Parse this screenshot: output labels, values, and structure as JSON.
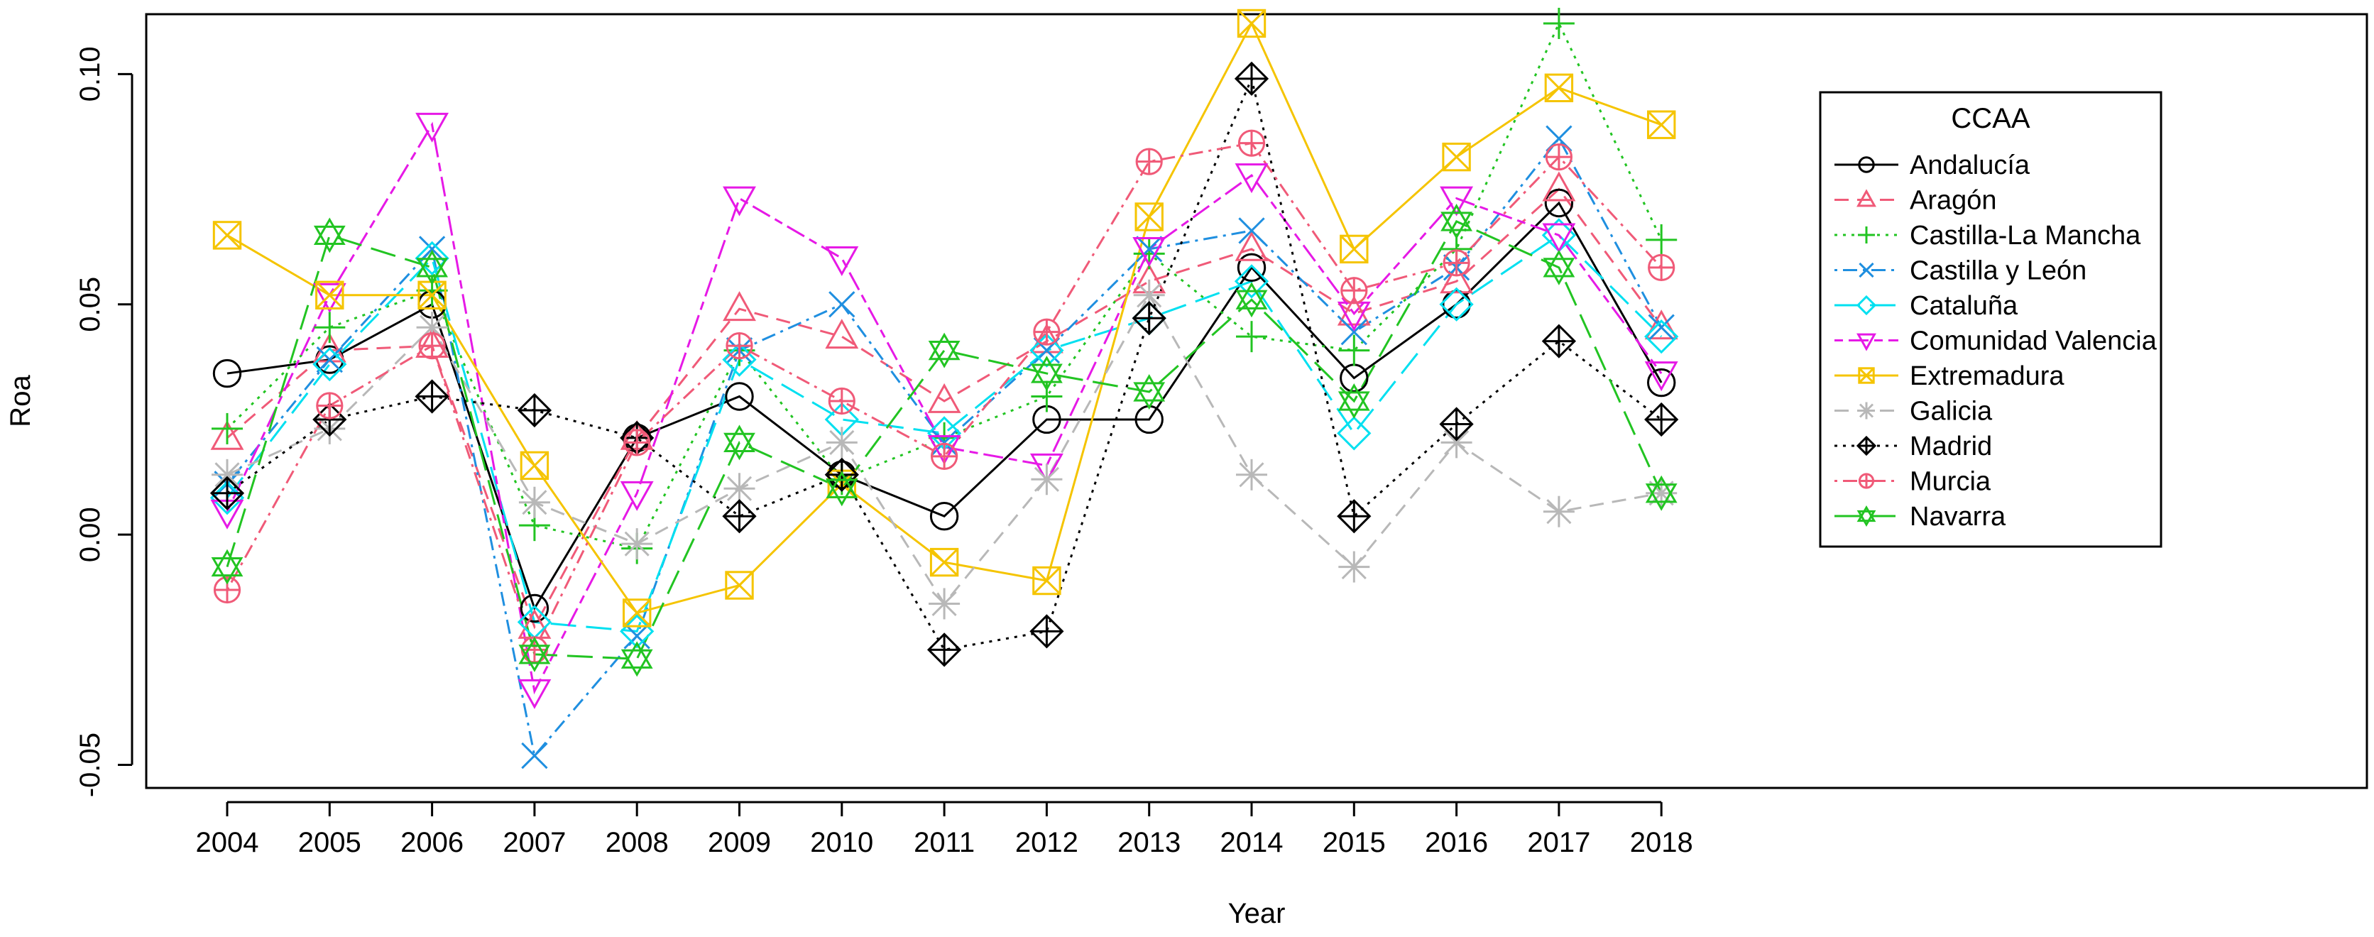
{
  "chart_data": {
    "type": "line",
    "title": "",
    "xlabel": "Year",
    "ylabel": "Roa",
    "x": [
      2004,
      2005,
      2006,
      2007,
      2008,
      2009,
      2010,
      2011,
      2012,
      2013,
      2014,
      2015,
      2016,
      2017,
      2018
    ],
    "x_tick_labels": [
      "2004",
      "2005",
      "2006",
      "2007",
      "2008",
      "2009",
      "2010",
      "2011",
      "2012",
      "2013",
      "2014",
      "2015",
      "2016",
      "2017",
      "2018"
    ],
    "y_ticks": [
      -0.05,
      0.0,
      0.05,
      0.1
    ],
    "y_tick_labels": [
      "-0.05",
      "0.00",
      "0.05",
      "0.10"
    ],
    "ylim": [
      -0.055,
      0.113
    ],
    "grid": false,
    "legend_title": "CCAA",
    "legend_position": "right",
    "series": [
      {
        "name": "Andalucía",
        "color": "#000000",
        "marker": "circle",
        "dash": "solid",
        "values": [
          0.035,
          0.038,
          0.05,
          -0.016,
          0.021,
          0.03,
          0.013,
          0.004,
          0.025,
          0.025,
          0.058,
          0.034,
          0.05,
          0.072,
          0.033
        ]
      },
      {
        "name": "Aragón",
        "color": "#f05a78",
        "marker": "triangle-up",
        "dash": "dashed",
        "values": [
          0.021,
          0.04,
          0.041,
          -0.02,
          0.021,
          0.049,
          0.043,
          0.029,
          0.042,
          0.055,
          0.062,
          0.048,
          0.055,
          0.075,
          0.045
        ]
      },
      {
        "name": "Castilla-La Mancha",
        "color": "#22c422",
        "marker": "plus",
        "dash": "dotted",
        "values": [
          0.023,
          0.045,
          0.053,
          0.002,
          -0.003,
          0.04,
          0.012,
          0.021,
          0.03,
          0.061,
          0.043,
          0.04,
          0.062,
          0.111,
          0.064
        ]
      },
      {
        "name": "Castilla y León",
        "color": "#1f8fe0",
        "marker": "cross",
        "dash": "dashdot",
        "values": [
          0.011,
          0.038,
          0.062,
          -0.048,
          -0.022,
          0.04,
          0.05,
          0.02,
          0.04,
          0.062,
          0.066,
          0.044,
          0.058,
          0.086,
          0.045
        ]
      },
      {
        "name": "Cataluña",
        "color": "#00e0f0",
        "marker": "diamond",
        "dash": "longdash",
        "values": [
          0.008,
          0.037,
          0.06,
          -0.019,
          -0.021,
          0.038,
          0.025,
          0.022,
          0.04,
          0.047,
          0.055,
          0.022,
          0.05,
          0.065,
          0.043
        ]
      },
      {
        "name": "Comunidad Valencia",
        "color": "#e619e6",
        "marker": "triangle-down",
        "dash": "twodash",
        "values": [
          0.005,
          0.052,
          0.089,
          -0.034,
          0.009,
          0.073,
          0.06,
          0.019,
          0.015,
          0.062,
          0.078,
          0.048,
          0.073,
          0.065,
          0.035
        ]
      },
      {
        "name": "Extremadura",
        "color": "#f5c400",
        "marker": "square-x",
        "dash": "solid",
        "values": [
          0.065,
          0.052,
          0.052,
          0.015,
          -0.017,
          -0.011,
          0.011,
          -0.006,
          -0.01,
          0.069,
          0.111,
          0.062,
          0.082,
          0.097,
          0.089
        ]
      },
      {
        "name": "Galicia",
        "color": "#b8b8b8",
        "marker": "asterisk",
        "dash": "dashed",
        "values": [
          0.013,
          0.023,
          0.045,
          0.007,
          -0.002,
          0.01,
          0.02,
          -0.015,
          0.012,
          0.052,
          0.013,
          -0.007,
          0.02,
          0.005,
          0.009
        ]
      },
      {
        "name": "Madrid",
        "color": "#000000",
        "marker": "diamond-plus",
        "dash": "dotted",
        "values": [
          0.009,
          0.025,
          0.03,
          0.027,
          0.021,
          0.004,
          0.013,
          -0.025,
          -0.021,
          0.047,
          0.099,
          0.004,
          0.024,
          0.042,
          0.025
        ]
      },
      {
        "name": "Murcia",
        "color": "#f05a78",
        "marker": "circle-plus",
        "dash": "dashdot",
        "values": [
          -0.012,
          0.028,
          0.041,
          -0.025,
          0.02,
          0.041,
          0.029,
          0.017,
          0.044,
          0.081,
          0.085,
          0.053,
          0.059,
          0.082,
          0.058
        ]
      },
      {
        "name": "Navarra",
        "color": "#22c422",
        "marker": "star-of-david",
        "dash": "longdash",
        "values": [
          -0.007,
          0.065,
          0.058,
          -0.026,
          -0.027,
          0.02,
          0.01,
          0.04,
          0.035,
          0.031,
          0.051,
          0.029,
          0.068,
          0.058,
          0.009
        ]
      }
    ]
  }
}
